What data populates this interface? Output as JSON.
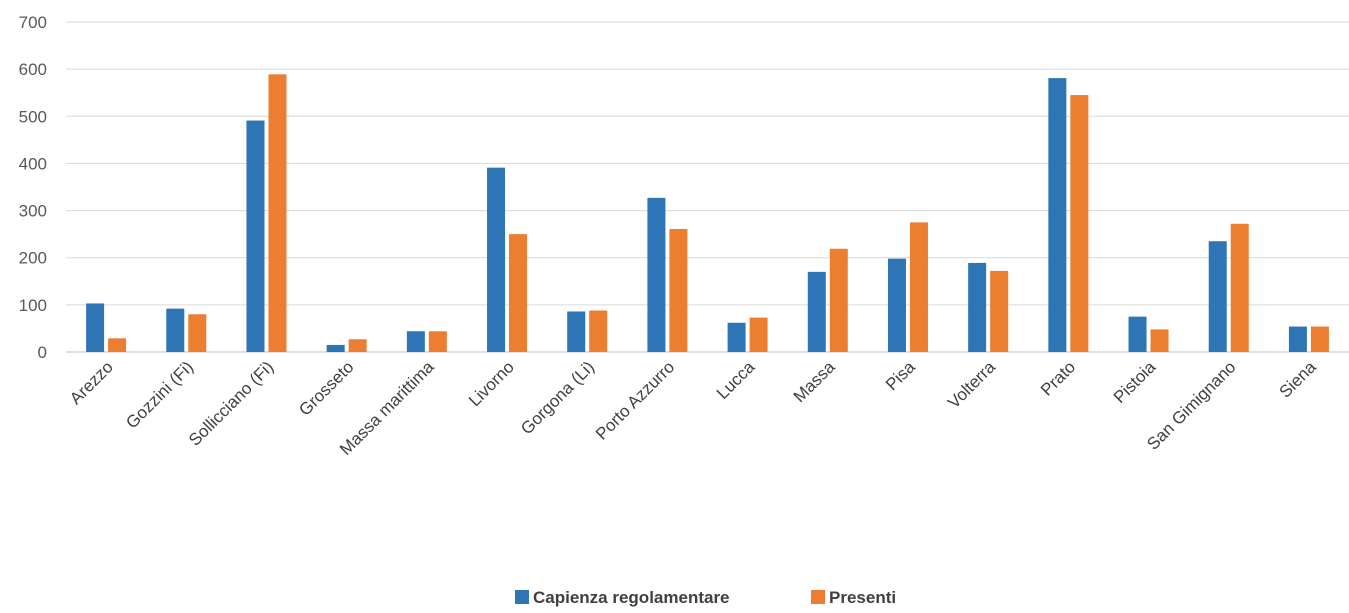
{
  "chart_data": {
    "type": "bar",
    "categories": [
      "Arezzo",
      "Gozzini (Fi)",
      "Sollicciano (Fi)",
      "Grosseto",
      "Massa marittima",
      "Livorno",
      "Gorgona (Li)",
      "Porto Azzurro",
      "Lucca",
      "Massa",
      "Pisa",
      "Volterra",
      "Prato",
      "Pistoia",
      "San Gimignano",
      "Siena"
    ],
    "series": [
      {
        "name": "Capienza regolamentare",
        "color": "#2E75B6",
        "values": [
          103,
          92,
          491,
          15,
          44,
          391,
          86,
          327,
          62,
          170,
          198,
          189,
          581,
          75,
          235,
          54
        ]
      },
      {
        "name": "Presenti",
        "color": "#ED7D31",
        "values": [
          29,
          80,
          589,
          27,
          44,
          250,
          88,
          261,
          73,
          219,
          275,
          172,
          545,
          48,
          272,
          54
        ]
      }
    ],
    "yticks": [
      "0",
      "100",
      "200",
      "300",
      "400",
      "500",
      "600",
      "700"
    ],
    "ylim": [
      0,
      700
    ],
    "grid": true,
    "legend_position": "bottom",
    "title": "",
    "xlabel": "",
    "ylabel": ""
  }
}
